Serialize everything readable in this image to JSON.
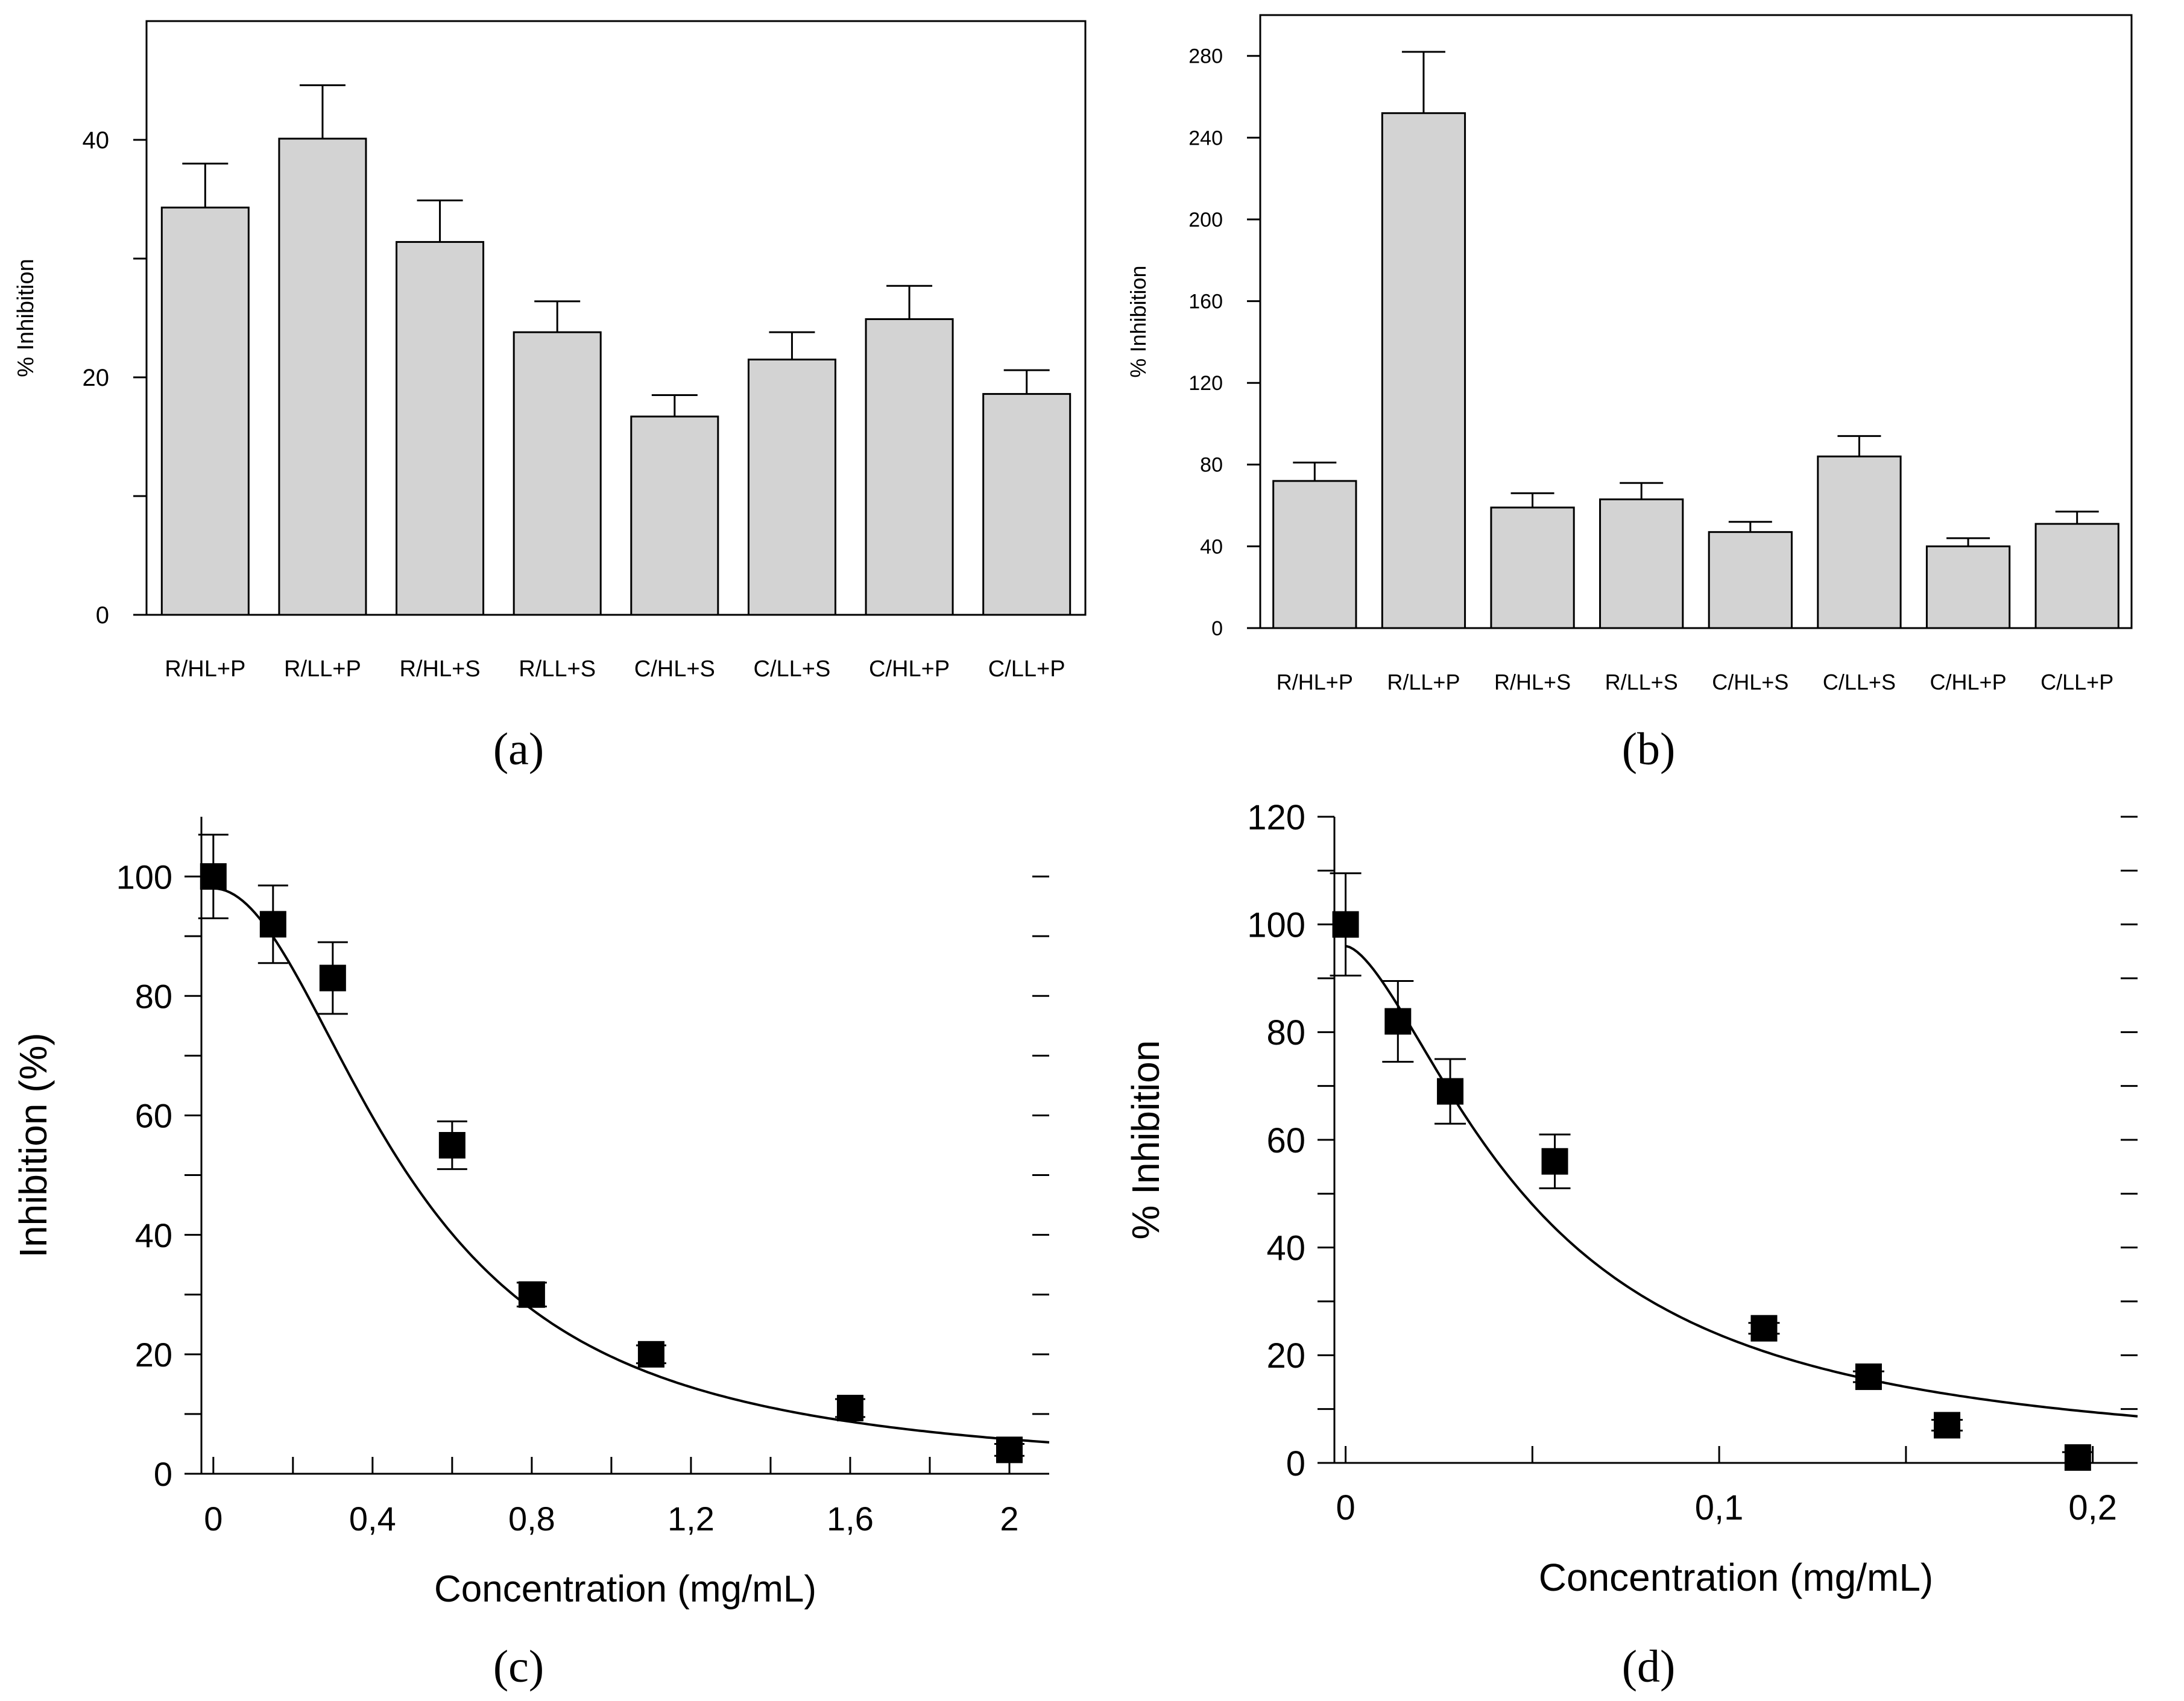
{
  "colors": {
    "bar_fill": "#d3d3d3",
    "stroke": "#000000",
    "background": "#ffffff"
  },
  "panel_labels": [
    "(a)",
    "(b)",
    "(c)",
    "(d)"
  ],
  "chart_data": [
    {
      "panel": "(a)",
      "type": "bar",
      "title": "",
      "xlabel": "",
      "ylabel": "% Inhibition",
      "categories": [
        "R/HL+P",
        "R/LL+P",
        "R/HL+S",
        "R/LL+S",
        "C/HL+S",
        "C/LL+S",
        "C/HL+P",
        "C/LL+P"
      ],
      "values": [
        34.3,
        40.1,
        31.4,
        23.8,
        16.7,
        21.5,
        24.9,
        18.6
      ],
      "errors": [
        3.7,
        4.5,
        3.5,
        2.6,
        1.8,
        2.3,
        2.8,
        2.0
      ],
      "ylim": [
        0,
        50
      ],
      "yticks": [
        0,
        20,
        40
      ],
      "yticks_minor": [
        10,
        30
      ],
      "grid": false
    },
    {
      "panel": "(b)",
      "type": "bar",
      "title": "",
      "xlabel": "",
      "ylabel": "% Inhibition",
      "categories": [
        "R/HL+P",
        "R/LL+P",
        "R/HL+S",
        "R/LL+S",
        "C/HL+S",
        "C/LL+S",
        "C/HL+P",
        "C/LL+P"
      ],
      "values": [
        72,
        252,
        59,
        63,
        47,
        84,
        40,
        51
      ],
      "errors": [
        9,
        30,
        7,
        8,
        5,
        10,
        4,
        6
      ],
      "ylim": [
        0,
        300
      ],
      "yticks": [
        0,
        40,
        80,
        120,
        160,
        200,
        240,
        280
      ],
      "grid": false
    },
    {
      "panel": "(c)",
      "type": "scatter",
      "title": "",
      "xlabel": "Concentration (mg/mL)",
      "ylabel": "Inhibition (%)",
      "x": [
        0,
        0.15,
        0.3,
        0.6,
        0.8,
        1.1,
        1.6,
        2.0
      ],
      "y": [
        100,
        92,
        83,
        55,
        30,
        20,
        11,
        4
      ],
      "yerr": [
        7,
        6.5,
        6,
        4,
        2,
        1.5,
        1.5,
        1
      ],
      "fit": {
        "model": "sigmoid",
        "top": 98,
        "ec50": 0.5,
        "hill": 2
      },
      "xlim": [
        -0.03,
        2.1
      ],
      "ylim": [
        0,
        110
      ],
      "xticks": [
        0,
        0.4,
        0.8,
        1.2,
        1.6,
        2.0
      ],
      "xtick_labels": [
        "0",
        "0,4",
        "0,8",
        "1,2",
        "1,6",
        "2"
      ],
      "xticks_minor": [
        0.2,
        0.6,
        1.0,
        1.4,
        1.8
      ],
      "yticks": [
        0,
        20,
        40,
        60,
        80,
        100
      ],
      "yticks_minor": [
        10,
        30,
        50,
        70,
        90
      ],
      "grid": false
    },
    {
      "panel": "(d)",
      "type": "scatter",
      "title": "",
      "xlabel": "Concentration (mg/mL)",
      "ylabel": "% Inhibition",
      "x": [
        0,
        0.014,
        0.028,
        0.056,
        0.112,
        0.14,
        0.161,
        0.196
      ],
      "y": [
        100,
        82,
        69,
        56,
        25,
        16,
        7,
        1
      ],
      "yerr": [
        9.5,
        7.5,
        6,
        5,
        1,
        1,
        1,
        1
      ],
      "fit": {
        "model": "sigmoid",
        "top": 96,
        "ec50": 0.05,
        "hill": 1.6
      },
      "xlim": [
        -0.003,
        0.212
      ],
      "ylim": [
        0,
        120
      ],
      "xticks": [
        0,
        0.1,
        0.2
      ],
      "xtick_labels": [
        "0",
        "0,1",
        "0,2"
      ],
      "xticks_minor": [
        0.05,
        0.15
      ],
      "yticks": [
        0,
        20,
        40,
        60,
        80,
        100,
        120
      ],
      "yticks_minor": [
        10,
        30,
        50,
        70,
        90,
        110
      ],
      "grid": false
    }
  ]
}
